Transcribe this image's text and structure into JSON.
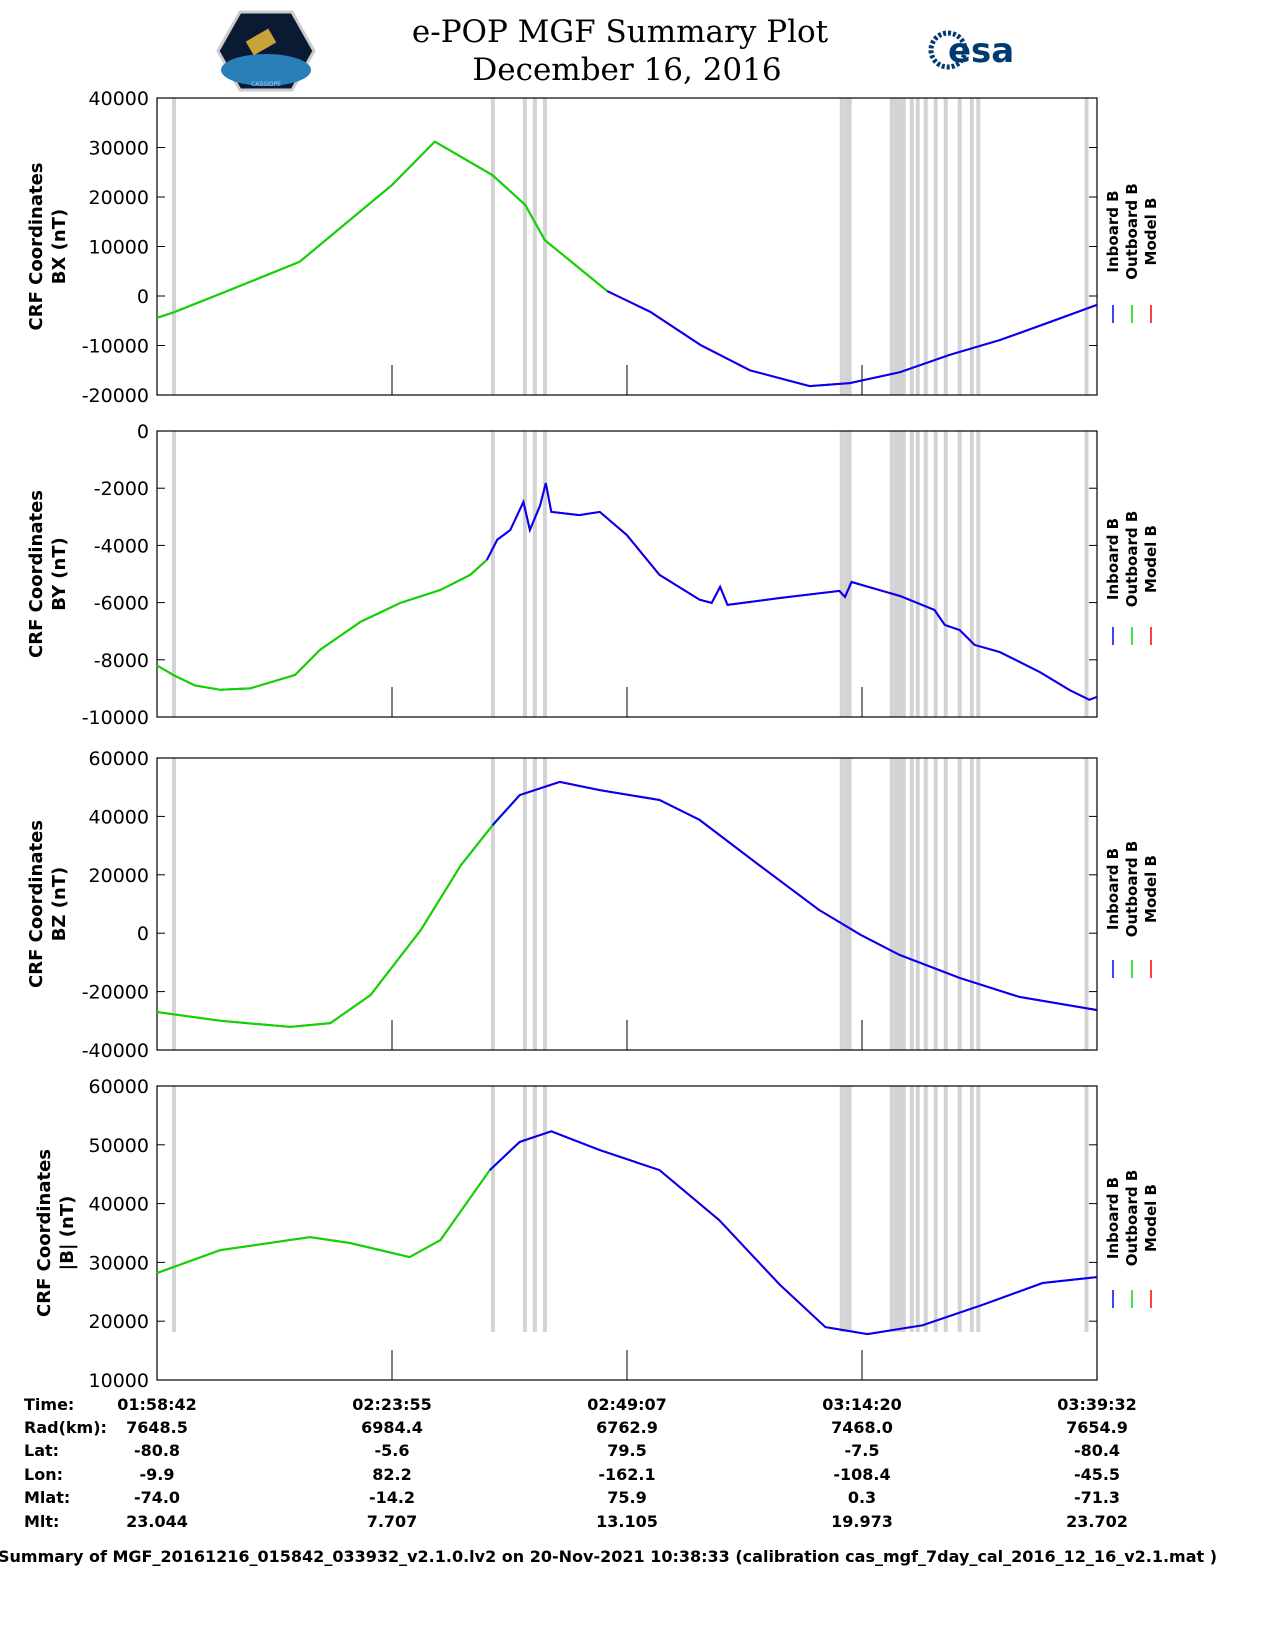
{
  "header": {
    "title": "e-POP MGF Summary Plot",
    "date": "December 16, 2016",
    "left_logo": "CASSIOPE",
    "right_logo": "esa"
  },
  "colors": {
    "inboard": "#0000ff",
    "outboard": "#00dd00",
    "model": "#ff0000",
    "band": "#d3d3d3"
  },
  "chart_data": [
    {
      "type": "line",
      "id": "bx",
      "ylabel": [
        "CRF Coordinates",
        "BX (nT)"
      ],
      "ylim": [
        -20000,
        40000
      ],
      "yticks": [
        40000,
        30000,
        20000,
        10000,
        0,
        -10000,
        -20000
      ],
      "xlim": [
        0,
        100.83
      ],
      "switch_minute": 48.3,
      "legend": [
        "Inboard B",
        "Outboard B",
        "Model B"
      ],
      "x": [
        0,
        1.8,
        7.8,
        15.3,
        25.2,
        29.8,
        36,
        39.5,
        41.6,
        48.3,
        52.9,
        58.3,
        63.6,
        70,
        74.3,
        79.7,
        85,
        90.4,
        95.8,
        100.8
      ],
      "y": [
        -4400,
        -3300,
        1200,
        6900,
        22400,
        31200,
        24400,
        18400,
        11300,
        1000,
        -3200,
        -9900,
        -15000,
        -18200,
        -17600,
        -15400,
        -11900,
        -8900,
        -5250,
        -1800
      ]
    },
    {
      "type": "line",
      "id": "by",
      "ylabel": [
        "CRF Coordinates",
        "BY (nT)"
      ],
      "ylim": [
        -10000,
        0
      ],
      "yticks": [
        0,
        -2000,
        -4000,
        -6000,
        -8000,
        -10000
      ],
      "xlim": [
        0,
        100.83
      ],
      "switch_minute": 35.4,
      "legend": [
        "Inboard B",
        "Outboard B",
        "Model B"
      ],
      "x": [
        0,
        1.9,
        4.1,
        6.8,
        10,
        14.8,
        17.5,
        21.8,
        26.1,
        30.4,
        33.6,
        35.4,
        36.5,
        37.9,
        39.3,
        40,
        41.1,
        41.7,
        42.3,
        45.3,
        47.5,
        50.4,
        53.9,
        58.2,
        59.5,
        60.4,
        61.2,
        66.8,
        73.2,
        73.8,
        74.5,
        79.7,
        83.4,
        84.5,
        86.1,
        87.7,
        90.4,
        94.7,
        97.9,
        100,
        100.8
      ],
      "y": [
        -8200,
        -8560,
        -8900,
        -9050,
        -9000,
        -8530,
        -7650,
        -6680,
        -6010,
        -5560,
        -5030,
        -4500,
        -3800,
        -3460,
        -2480,
        -3460,
        -2590,
        -1820,
        -2830,
        -2940,
        -2830,
        -3640,
        -5030,
        -5900,
        -6010,
        -5450,
        -6080,
        -5840,
        -5590,
        -5800,
        -5280,
        -5770,
        -6260,
        -6780,
        -6960,
        -7480,
        -7730,
        -8430,
        -9060,
        -9400,
        -9300
      ]
    },
    {
      "type": "line",
      "id": "bz",
      "ylabel": [
        "CRF Coordinates",
        "BZ (nT)"
      ],
      "ylim": [
        -40000,
        60000
      ],
      "yticks": [
        60000,
        40000,
        20000,
        0,
        -20000,
        -40000
      ],
      "xlim": [
        0,
        100.83
      ],
      "switch_minute": 37.9,
      "legend": [
        "Inboard B",
        "Outboard B",
        "Model B"
      ],
      "x": [
        0,
        6.8,
        14.3,
        18.6,
        22.9,
        28.3,
        32.6,
        36,
        38.9,
        43.2,
        47.5,
        53.9,
        58.2,
        64.6,
        71,
        75.5,
        79.7,
        86.1,
        92.5,
        100.8
      ],
      "y": [
        -27000,
        -30000,
        -32100,
        -30800,
        -21200,
        1100,
        23300,
        37000,
        47300,
        51800,
        49000,
        45600,
        38800,
        23300,
        8000,
        -600,
        -7500,
        -15300,
        -21800,
        -26300
      ]
    },
    {
      "type": "line",
      "id": "bmag",
      "ylabel": [
        "CRF Coordinates",
        "|B| (nT)"
      ],
      "ylim": [
        10000,
        60000
      ],
      "yticks": [
        60000,
        50000,
        40000,
        30000,
        20000,
        10000
      ],
      "xlim": [
        0,
        100.83
      ],
      "switch_minute": 37.3,
      "legend": [
        "Inboard B",
        "Outboard B",
        "Model B"
      ],
      "x": [
        0,
        6.8,
        16.4,
        20.7,
        27.1,
        30.4,
        35.7,
        38.9,
        42.3,
        47.5,
        53.9,
        60.3,
        66.8,
        71.7,
        76.2,
        82.1,
        88.6,
        95,
        100.8
      ],
      "y": [
        28200,
        32100,
        34300,
        33300,
        30900,
        33800,
        45700,
        50500,
        52300,
        49100,
        45700,
        37200,
        26200,
        19000,
        17800,
        19300,
        22800,
        26500,
        27500
      ]
    }
  ],
  "bands_minutes": [
    1.82,
    36.03,
    39.46,
    40.53,
    41.61,
    73.45,
    73.9,
    74.3,
    78.82,
    79.25,
    79.67,
    80.1,
    80.96,
    81.6,
    82.46,
    83.53,
    84.6,
    86.1,
    87.4,
    88.1,
    99.7
  ],
  "table": {
    "labels": [
      "Time:",
      "Rad(km):",
      "Lat:",
      "Lon:",
      "Mlat:",
      "Mlt:"
    ],
    "columns": [
      [
        "01:58:42",
        "7648.5",
        "-80.8",
        "-9.9",
        "-74.0",
        "23.044"
      ],
      [
        "02:23:55",
        "6984.4",
        "-5.6",
        "82.2",
        "-14.2",
        "7.707"
      ],
      [
        "02:49:07",
        "6762.9",
        "79.5",
        "-162.1",
        "75.9",
        "13.105"
      ],
      [
        "03:14:20",
        "7468.0",
        "-7.5",
        "-108.4",
        "0.3",
        "19.973"
      ],
      [
        "03:39:32",
        "7654.9",
        "-80.4",
        "-45.5",
        "-71.3",
        "23.702"
      ]
    ]
  },
  "footer": "Summary of MGF_20161216_015842_033932_v2.1.0.lv2 on 20-Nov-2021 10:38:33 (calibration cas_mgf_7day_cal_2016_12_16_v2.1.mat )"
}
